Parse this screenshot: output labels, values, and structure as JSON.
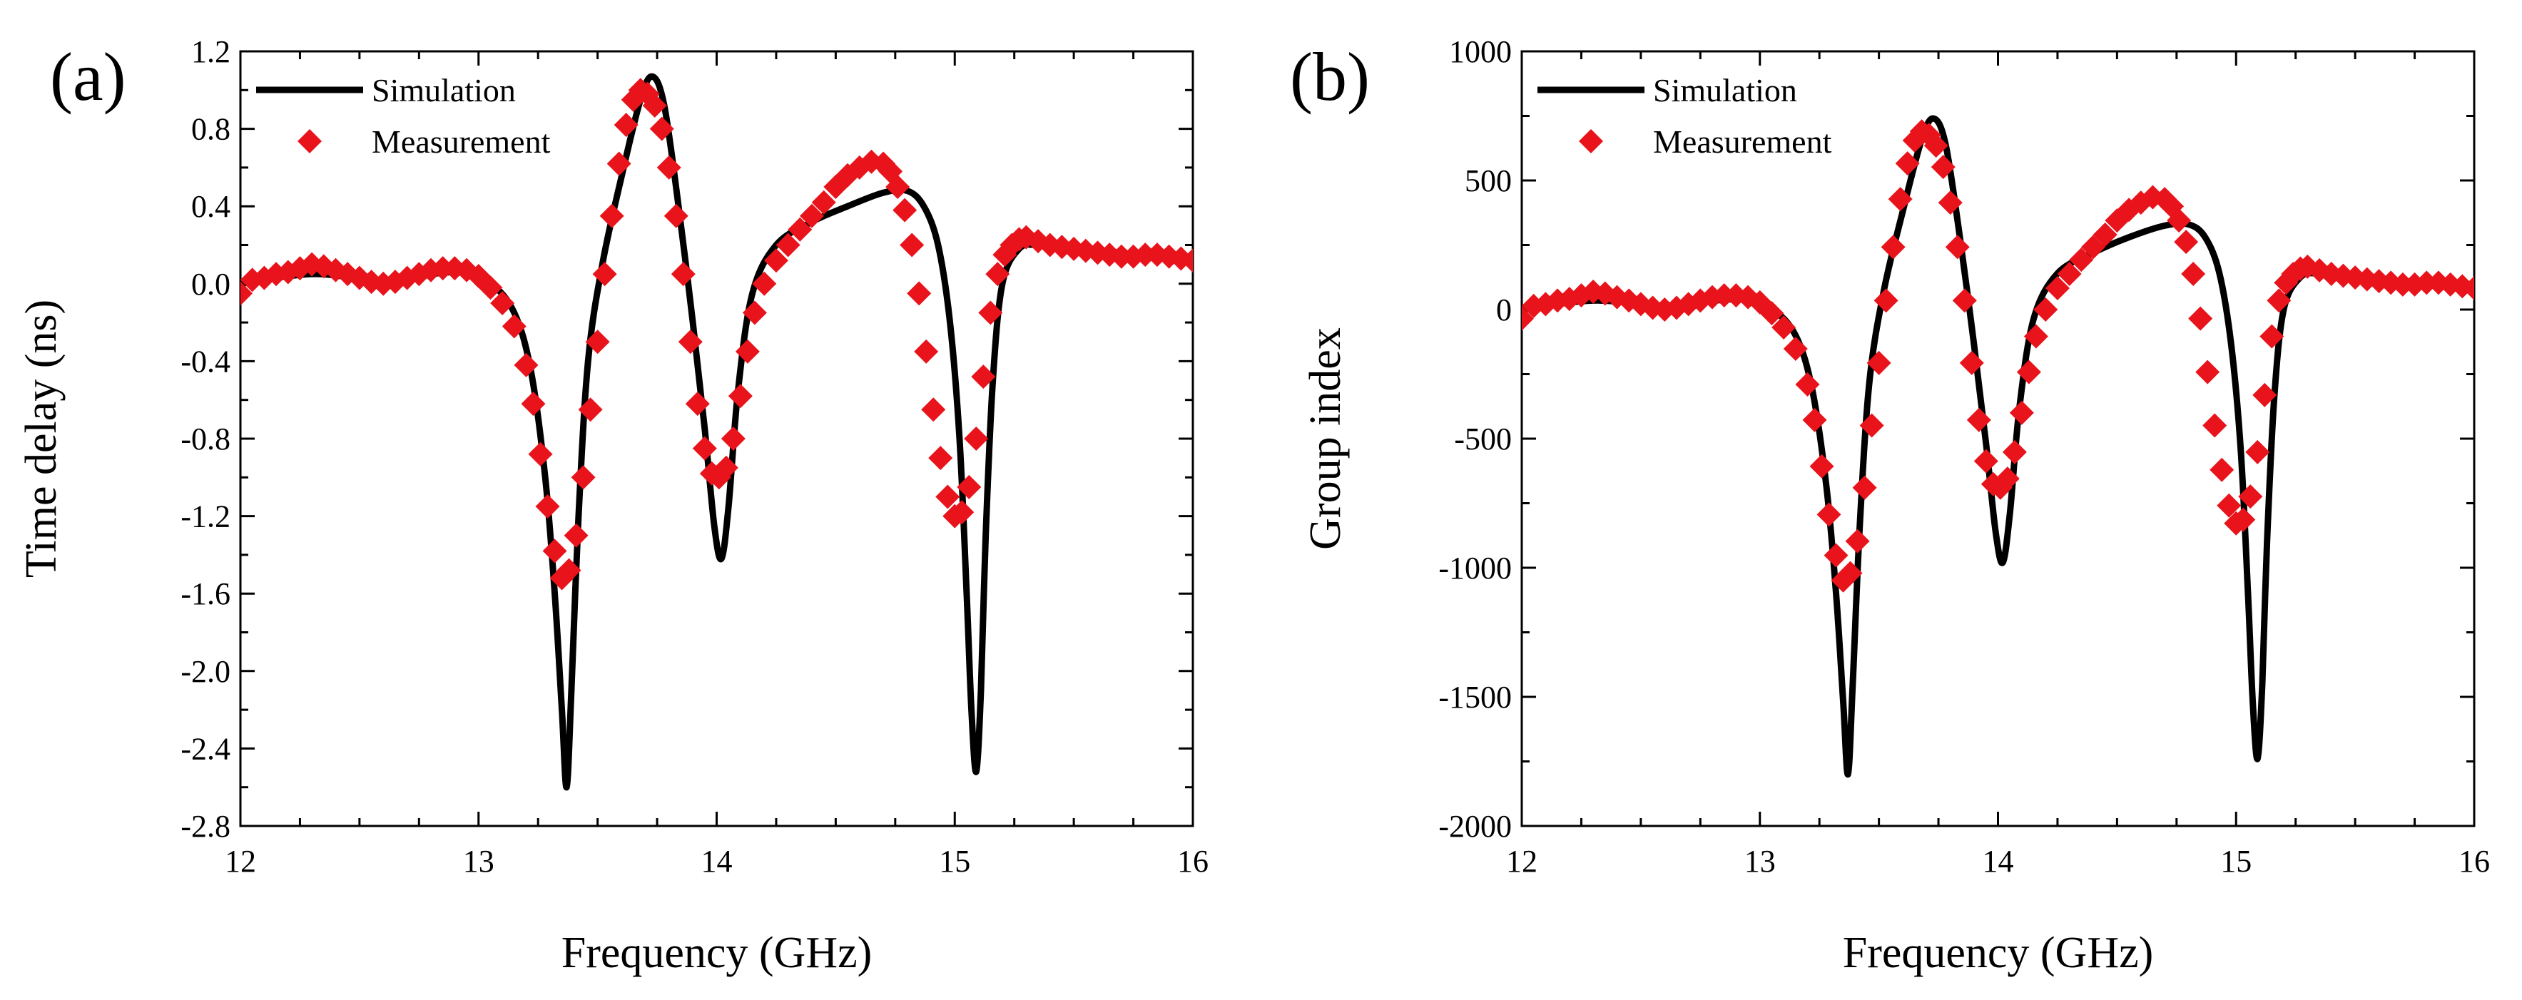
{
  "colors": {
    "simulation": "#000000",
    "measurement": "#e8131b",
    "axis": "#000000"
  },
  "chart_data": [
    {
      "type": "line",
      "panel_label": "(a)",
      "xlabel": "Frequency (GHz)",
      "ylabel": "Time delay (ns)",
      "xlim": [
        12,
        16
      ],
      "ylim": [
        -2.8,
        1.2
      ],
      "x_ticks": [
        12,
        13,
        14,
        15,
        16
      ],
      "y_ticks": [
        -2.8,
        -2.4,
        -2.0,
        -1.6,
        -1.2,
        -0.8,
        -0.4,
        0.0,
        0.4,
        0.8,
        1.2
      ],
      "x_tick_labels": [
        "12",
        "13",
        "14",
        "15",
        "16"
      ],
      "y_tick_labels": [
        "-2.8",
        "-2.4",
        "-2.0",
        "-1.6",
        "-1.2",
        "-0.8",
        "-0.4",
        "0.0",
        "0.4",
        "0.8",
        "1.2"
      ],
      "legend": {
        "position": "top-left",
        "entries": [
          "Simulation",
          "Measurement"
        ]
      },
      "series": [
        {
          "name": "Simulation",
          "style": "line",
          "x": [
            12.0,
            12.3,
            12.6,
            12.9,
            13.05,
            13.15,
            13.22,
            13.28,
            13.32,
            13.35,
            13.37,
            13.39,
            13.42,
            13.46,
            13.52,
            13.6,
            13.68,
            13.73,
            13.78,
            13.84,
            13.9,
            13.95,
            13.99,
            14.02,
            14.05,
            14.09,
            14.15,
            14.25,
            14.4,
            14.55,
            14.7,
            14.8,
            14.87,
            14.93,
            14.98,
            15.02,
            15.05,
            15.07,
            15.09,
            15.11,
            15.13,
            15.16,
            15.2,
            15.27,
            15.35,
            15.5,
            15.7,
            16.0
          ],
          "values": [
            0.0,
            0.05,
            0.02,
            0.06,
            0.0,
            -0.15,
            -0.45,
            -1.0,
            -1.6,
            -2.2,
            -2.6,
            -2.1,
            -1.2,
            -0.4,
            0.1,
            0.55,
            0.95,
            1.07,
            0.92,
            0.4,
            -0.2,
            -0.75,
            -1.25,
            -1.42,
            -1.15,
            -0.55,
            -0.05,
            0.2,
            0.32,
            0.4,
            0.47,
            0.48,
            0.4,
            0.2,
            -0.2,
            -0.8,
            -1.6,
            -2.2,
            -2.52,
            -2.1,
            -1.3,
            -0.5,
            0.0,
            0.18,
            0.2,
            0.18,
            0.16,
            0.12
          ]
        },
        {
          "name": "Measurement",
          "style": "markers",
          "x": [
            12.0,
            12.05,
            12.1,
            12.15,
            12.2,
            12.25,
            12.3,
            12.35,
            12.4,
            12.45,
            12.5,
            12.55,
            12.6,
            12.65,
            12.7,
            12.75,
            12.8,
            12.85,
            12.9,
            12.95,
            13.0,
            13.05,
            13.1,
            13.15,
            13.2,
            13.23,
            13.26,
            13.29,
            13.32,
            13.35,
            13.38,
            13.41,
            13.44,
            13.47,
            13.5,
            13.53,
            13.56,
            13.59,
            13.62,
            13.65,
            13.68,
            13.71,
            13.74,
            13.77,
            13.8,
            13.83,
            13.86,
            13.89,
            13.92,
            13.95,
            13.98,
            14.01,
            14.04,
            14.07,
            14.1,
            14.13,
            14.16,
            14.2,
            14.25,
            14.3,
            14.35,
            14.4,
            14.45,
            14.5,
            14.55,
            14.6,
            14.65,
            14.7,
            14.73,
            14.76,
            14.79,
            14.82,
            14.85,
            14.88,
            14.91,
            14.94,
            14.97,
            15.0,
            15.03,
            15.06,
            15.09,
            15.12,
            15.15,
            15.18,
            15.21,
            15.24,
            15.27,
            15.3,
            15.35,
            15.4,
            15.45,
            15.5,
            15.55,
            15.6,
            15.65,
            15.7,
            15.75,
            15.8,
            15.85,
            15.9,
            15.95,
            16.0
          ],
          "values": [
            -0.05,
            0.02,
            0.03,
            0.05,
            0.06,
            0.08,
            0.1,
            0.09,
            0.07,
            0.05,
            0.03,
            0.01,
            0.0,
            0.01,
            0.03,
            0.05,
            0.07,
            0.08,
            0.08,
            0.07,
            0.04,
            -0.02,
            -0.1,
            -0.22,
            -0.42,
            -0.62,
            -0.88,
            -1.15,
            -1.38,
            -1.52,
            -1.48,
            -1.3,
            -1.0,
            -0.65,
            -0.3,
            0.05,
            0.35,
            0.62,
            0.82,
            0.95,
            1.0,
            0.98,
            0.92,
            0.8,
            0.6,
            0.35,
            0.05,
            -0.3,
            -0.62,
            -0.85,
            -0.98,
            -1.0,
            -0.95,
            -0.8,
            -0.58,
            -0.35,
            -0.15,
            0.0,
            0.12,
            0.2,
            0.28,
            0.35,
            0.42,
            0.5,
            0.56,
            0.6,
            0.63,
            0.62,
            0.58,
            0.5,
            0.38,
            0.2,
            -0.05,
            -0.35,
            -0.65,
            -0.9,
            -1.1,
            -1.2,
            -1.18,
            -1.05,
            -0.8,
            -0.48,
            -0.15,
            0.05,
            0.15,
            0.2,
            0.23,
            0.24,
            0.22,
            0.2,
            0.19,
            0.18,
            0.17,
            0.16,
            0.15,
            0.14,
            0.14,
            0.15,
            0.15,
            0.14,
            0.13,
            0.12
          ]
        }
      ]
    },
    {
      "type": "line",
      "panel_label": "(b)",
      "xlabel": "Frequency (GHz)",
      "ylabel": "Group index",
      "xlim": [
        12,
        16
      ],
      "ylim": [
        -2000,
        1000
      ],
      "x_ticks": [
        12,
        13,
        14,
        15,
        16
      ],
      "y_ticks": [
        -2000,
        -1500,
        -1000,
        -500,
        0,
        500,
        1000
      ],
      "x_tick_labels": [
        "12",
        "13",
        "14",
        "15",
        "16"
      ],
      "y_tick_labels": [
        "-2000",
        "-1500",
        "-1000",
        "-500",
        "0",
        "500",
        "1000"
      ],
      "legend": {
        "position": "top-left",
        "entries": [
          "Simulation",
          "Measurement"
        ]
      },
      "series": [
        {
          "name": "Simulation",
          "style": "line",
          "x": [
            12.0,
            12.3,
            12.6,
            12.9,
            13.05,
            13.15,
            13.22,
            13.28,
            13.32,
            13.35,
            13.37,
            13.39,
            13.42,
            13.46,
            13.52,
            13.6,
            13.68,
            13.73,
            13.78,
            13.84,
            13.9,
            13.95,
            13.99,
            14.02,
            14.05,
            14.09,
            14.15,
            14.25,
            14.4,
            14.55,
            14.7,
            14.8,
            14.87,
            14.93,
            14.98,
            15.02,
            15.05,
            15.07,
            15.09,
            15.11,
            15.13,
            15.16,
            15.2,
            15.27,
            15.35,
            15.5,
            15.7,
            16.0
          ],
          "values": [
            0,
            35,
            15,
            40,
            0,
            -100,
            -310,
            -690,
            -1100,
            -1520,
            -1800,
            -1450,
            -830,
            -280,
            70,
            380,
            660,
            740,
            640,
            280,
            -140,
            -520,
            -860,
            -980,
            -790,
            -380,
            -35,
            140,
            220,
            280,
            325,
            330,
            280,
            140,
            -140,
            -550,
            -1100,
            -1520,
            -1740,
            -1450,
            -900,
            -345,
            0,
            125,
            140,
            125,
            110,
            85
          ]
        },
        {
          "name": "Measurement",
          "style": "markers",
          "x": [
            12.0,
            12.05,
            12.1,
            12.15,
            12.2,
            12.25,
            12.3,
            12.35,
            12.4,
            12.45,
            12.5,
            12.55,
            12.6,
            12.65,
            12.7,
            12.75,
            12.8,
            12.85,
            12.9,
            12.95,
            13.0,
            13.05,
            13.1,
            13.15,
            13.2,
            13.23,
            13.26,
            13.29,
            13.32,
            13.35,
            13.38,
            13.41,
            13.44,
            13.47,
            13.5,
            13.53,
            13.56,
            13.59,
            13.62,
            13.65,
            13.68,
            13.71,
            13.74,
            13.77,
            13.8,
            13.83,
            13.86,
            13.89,
            13.92,
            13.95,
            13.98,
            14.01,
            14.04,
            14.07,
            14.1,
            14.13,
            14.16,
            14.2,
            14.25,
            14.3,
            14.35,
            14.4,
            14.45,
            14.5,
            14.55,
            14.6,
            14.65,
            14.7,
            14.73,
            14.76,
            14.79,
            14.82,
            14.85,
            14.88,
            14.91,
            14.94,
            14.97,
            15.0,
            15.03,
            15.06,
            15.09,
            15.12,
            15.15,
            15.18,
            15.21,
            15.24,
            15.27,
            15.3,
            15.35,
            15.4,
            15.45,
            15.5,
            15.55,
            15.6,
            15.65,
            15.7,
            15.75,
            15.8,
            15.85,
            15.9,
            15.95,
            16.0
          ],
          "values": [
            -35,
            14,
            21,
            35,
            41,
            55,
            69,
            62,
            48,
            35,
            21,
            7,
            0,
            7,
            21,
            35,
            48,
            55,
            55,
            48,
            28,
            -14,
            -69,
            -152,
            -290,
            -428,
            -607,
            -794,
            -952,
            -1049,
            -1021,
            -897,
            -690,
            -449,
            -207,
            35,
            242,
            428,
            566,
            655,
            690,
            676,
            635,
            552,
            414,
            242,
            35,
            -207,
            -428,
            -587,
            -676,
            -690,
            -655,
            -552,
            -400,
            -242,
            -104,
            0,
            83,
            138,
            193,
            242,
            290,
            345,
            386,
            414,
            435,
            428,
            400,
            345,
            262,
            138,
            -35,
            -242,
            -449,
            -621,
            -759,
            -828,
            -814,
            -724,
            -552,
            -331,
            -104,
            35,
            104,
            138,
            159,
            166,
            152,
            138,
            131,
            124,
            117,
            110,
            104,
            97,
            97,
            104,
            104,
            97,
            90,
            83
          ]
        }
      ]
    }
  ]
}
